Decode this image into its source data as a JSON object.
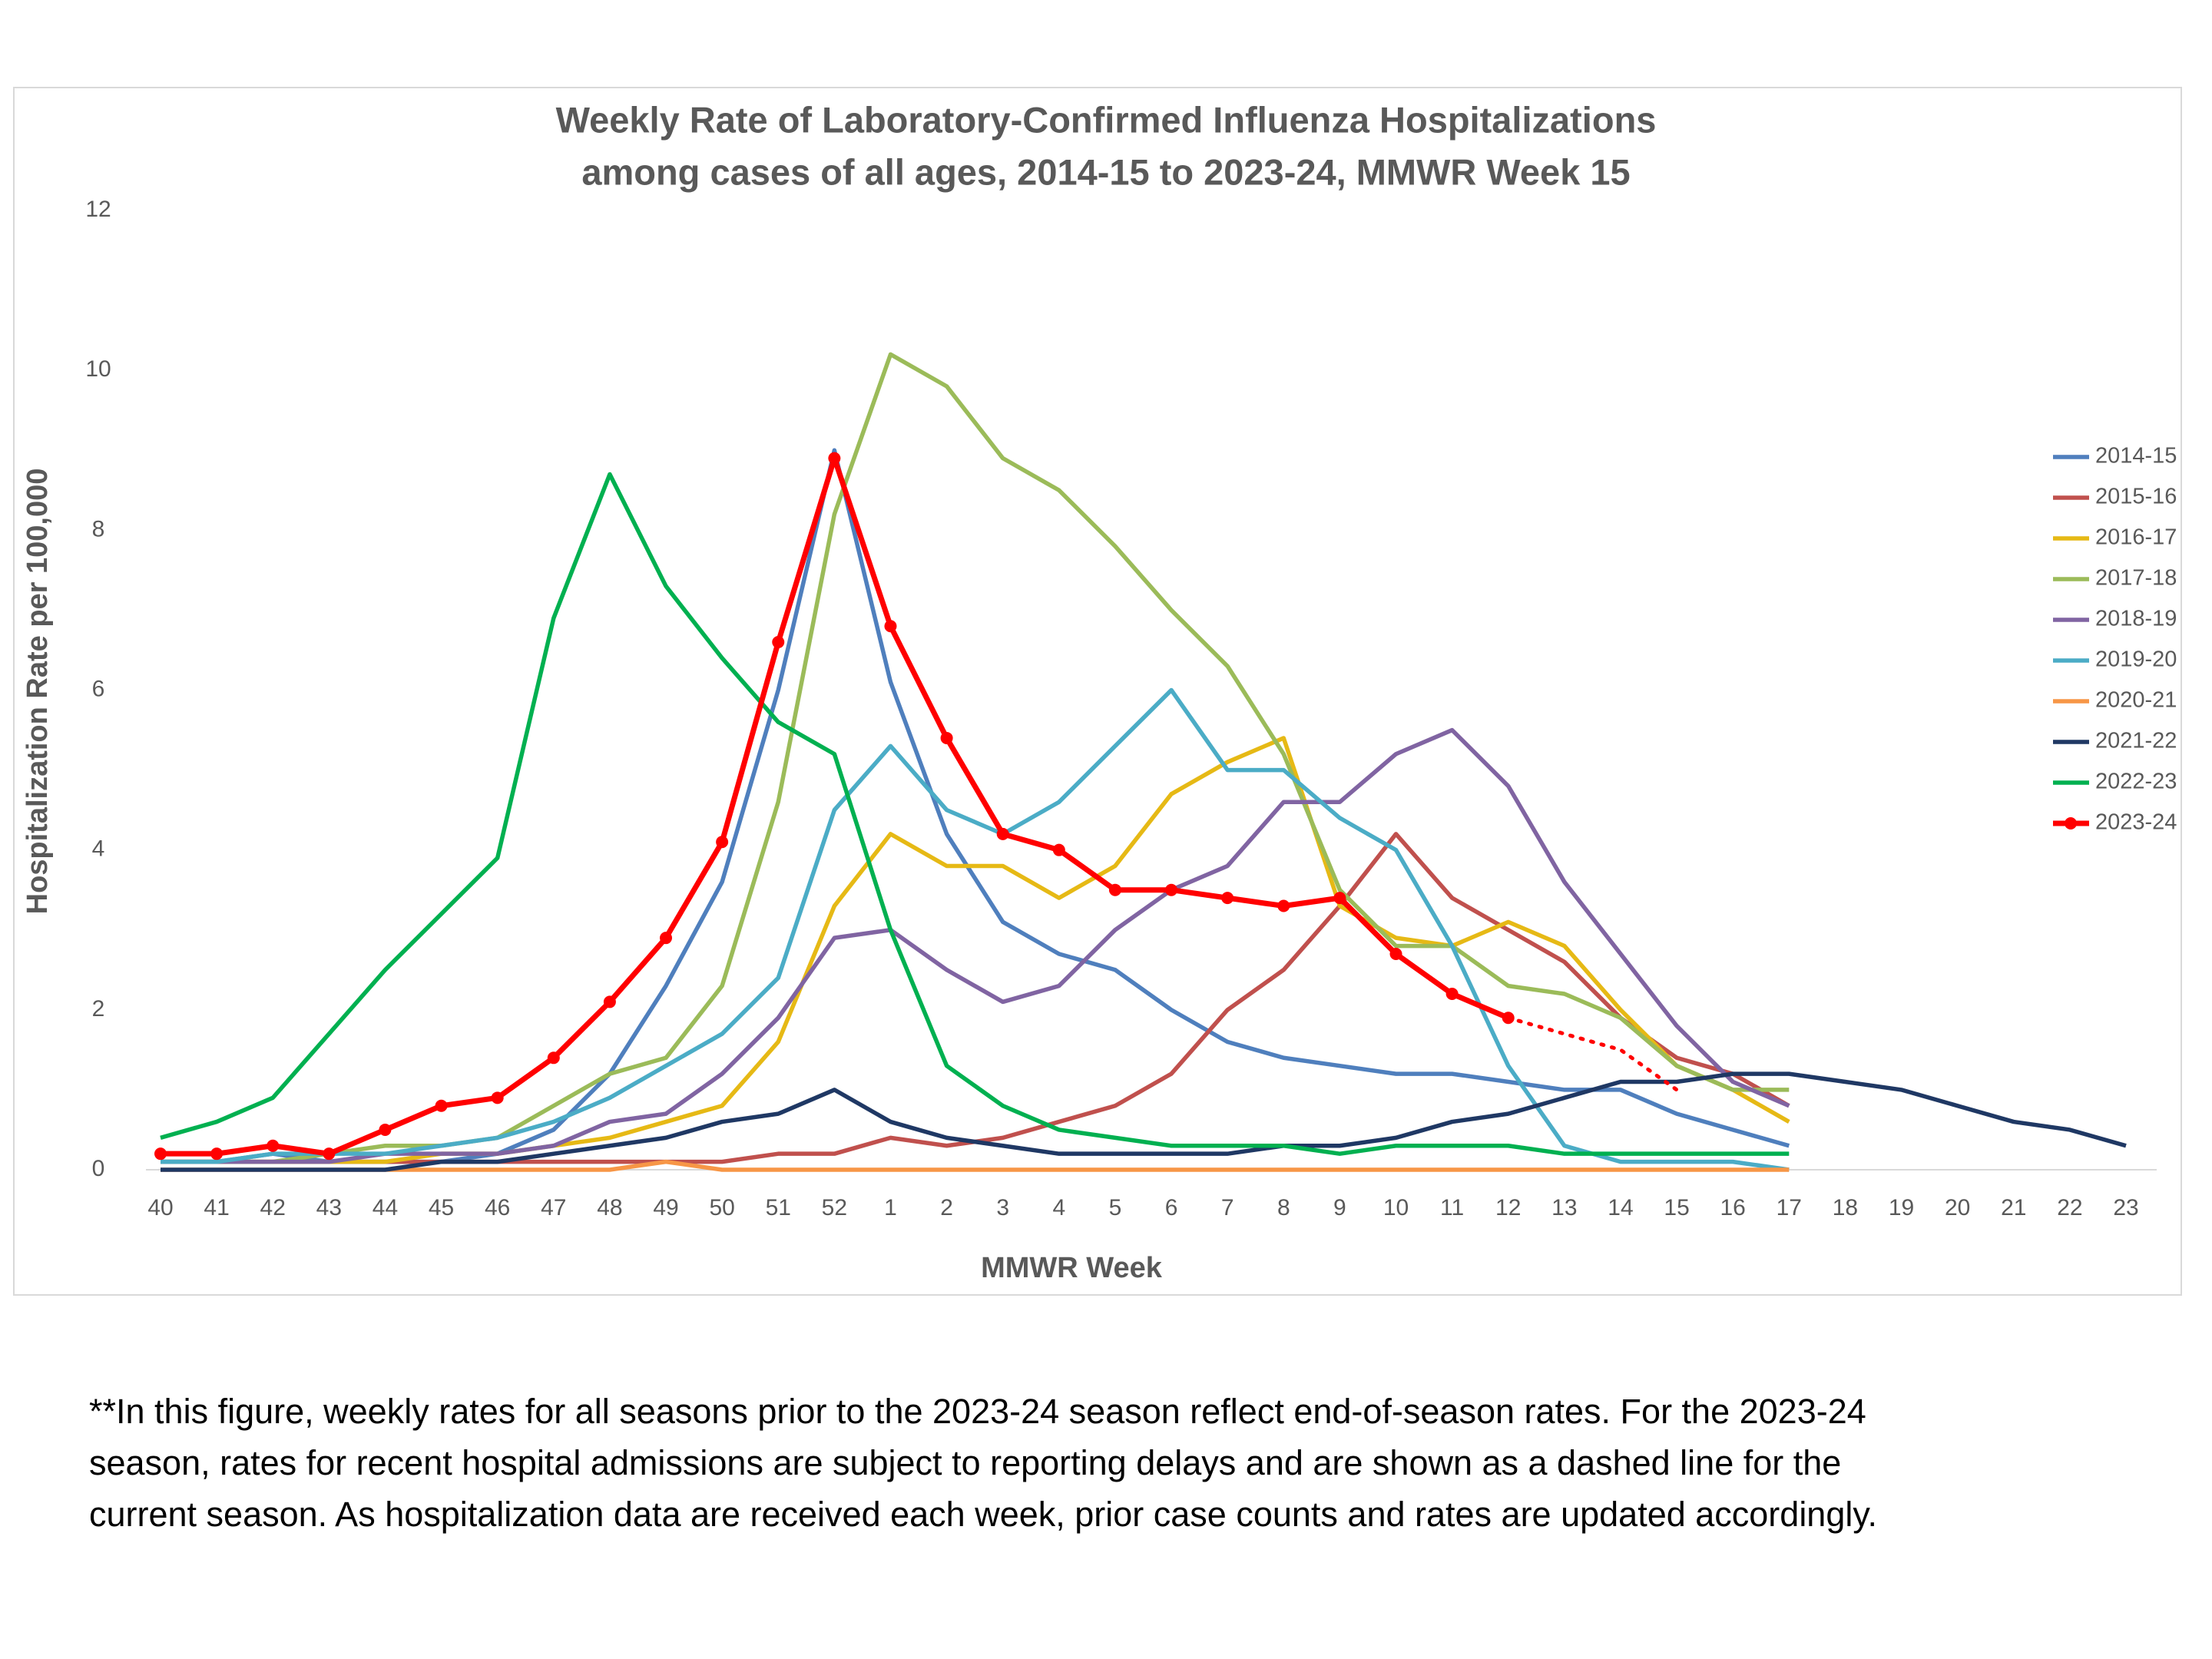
{
  "chart_data": {
    "type": "line",
    "title": [
      "Weekly Rate of Laboratory-Confirmed Influenza Hospitalizations",
      "among cases of all ages, 2014-15 to 2023-24, MMWR Week 15"
    ],
    "x_label": "MMWR Week",
    "y_label": "Hospitalization Rate per 100,000",
    "categories": [
      40,
      41,
      42,
      43,
      44,
      45,
      46,
      47,
      48,
      49,
      50,
      51,
      52,
      1,
      2,
      3,
      4,
      5,
      6,
      7,
      8,
      9,
      10,
      11,
      12,
      13,
      14,
      15,
      16,
      17,
      18,
      19,
      20,
      21,
      22,
      23
    ],
    "ylim": [
      0,
      12
    ],
    "yticks": [
      0,
      2,
      4,
      6,
      8,
      10,
      12
    ],
    "grid": false,
    "legend": "right",
    "series": [
      {
        "name": "2014-15",
        "color": "#4f7fbd",
        "values": [
          0.1,
          0.1,
          0.2,
          0.1,
          0.1,
          0.1,
          0.2,
          0.5,
          1.2,
          2.3,
          3.6,
          6.0,
          9.0,
          6.1,
          4.2,
          3.1,
          2.7,
          2.5,
          2.0,
          1.6,
          1.4,
          1.3,
          1.2,
          1.2,
          1.1,
          1.0,
          1.0,
          0.7,
          0.5,
          0.3,
          null,
          null,
          null,
          null,
          null,
          null
        ]
      },
      {
        "name": "2015-16",
        "color": "#c0504d",
        "values": [
          0.1,
          0.1,
          0.1,
          0.1,
          0.1,
          0.1,
          0.1,
          0.1,
          0.1,
          0.1,
          0.1,
          0.2,
          0.2,
          0.4,
          0.3,
          0.4,
          0.6,
          0.8,
          1.2,
          2.0,
          2.5,
          3.3,
          4.2,
          3.4,
          3.0,
          2.6,
          1.9,
          1.4,
          1.2,
          0.8,
          null,
          null,
          null,
          null,
          null,
          null
        ]
      },
      {
        "name": "2016-17",
        "color": "#e6b915",
        "values": [
          0.1,
          0.1,
          0.1,
          0.1,
          0.1,
          0.2,
          0.2,
          0.3,
          0.4,
          0.6,
          0.8,
          1.6,
          3.3,
          4.2,
          3.8,
          3.8,
          3.4,
          3.8,
          4.7,
          5.1,
          5.4,
          3.3,
          2.9,
          2.8,
          3.1,
          2.8,
          2.0,
          1.3,
          1.0,
          0.6,
          null,
          null,
          null,
          null,
          null,
          null
        ]
      },
      {
        "name": "2017-18",
        "color": "#9bbb59",
        "values": [
          0.1,
          0.1,
          0.1,
          0.2,
          0.3,
          0.3,
          0.4,
          0.8,
          1.2,
          1.4,
          2.3,
          4.6,
          8.2,
          10.2,
          9.8,
          8.9,
          8.5,
          7.8,
          7.0,
          6.3,
          5.2,
          3.5,
          2.8,
          2.8,
          2.3,
          2.2,
          1.9,
          1.3,
          1.0,
          1.0,
          null,
          null,
          null,
          null,
          null,
          null
        ]
      },
      {
        "name": "2018-19",
        "color": "#8064a2",
        "values": [
          0.1,
          0.1,
          0.1,
          0.1,
          0.2,
          0.2,
          0.2,
          0.3,
          0.6,
          0.7,
          1.2,
          1.9,
          2.9,
          3.0,
          2.5,
          2.1,
          2.3,
          3.0,
          3.5,
          3.8,
          4.6,
          4.6,
          5.2,
          5.5,
          4.8,
          3.6,
          2.7,
          1.8,
          1.1,
          0.8,
          null,
          null,
          null,
          null,
          null,
          null
        ]
      },
      {
        "name": "2019-20",
        "color": "#4bacc6",
        "values": [
          0.1,
          0.1,
          0.2,
          0.2,
          0.2,
          0.3,
          0.4,
          0.6,
          0.9,
          1.3,
          1.7,
          2.4,
          4.5,
          5.3,
          4.5,
          4.2,
          4.6,
          5.3,
          6.0,
          5.0,
          5.0,
          4.4,
          4.0,
          2.8,
          1.3,
          0.3,
          0.1,
          0.1,
          0.1,
          0.0,
          null,
          null,
          null,
          null,
          null,
          null
        ]
      },
      {
        "name": "2020-21",
        "color": "#f79646",
        "values": [
          0,
          0,
          0,
          0,
          0,
          0,
          0,
          0,
          0,
          0.1,
          0,
          0,
          0,
          0,
          0,
          0,
          0,
          0,
          0,
          0,
          0,
          0,
          0,
          0,
          0,
          0,
          0,
          0,
          0,
          0,
          null,
          null,
          null,
          null,
          null,
          null
        ]
      },
      {
        "name": "2021-22",
        "color": "#1f3864",
        "values": [
          0,
          0,
          0,
          0,
          0,
          0.1,
          0.1,
          0.2,
          0.3,
          0.4,
          0.6,
          0.7,
          1.0,
          0.6,
          0.4,
          0.3,
          0.2,
          0.2,
          0.2,
          0.2,
          0.3,
          0.3,
          0.4,
          0.6,
          0.7,
          0.9,
          1.1,
          1.1,
          1.2,
          1.2,
          1.1,
          1.0,
          0.8,
          0.6,
          0.5,
          0.3
        ]
      },
      {
        "name": "2022-23",
        "color": "#00b050",
        "values": [
          0.4,
          0.6,
          0.9,
          1.7,
          2.5,
          3.2,
          3.9,
          6.9,
          8.7,
          7.3,
          6.4,
          5.6,
          5.2,
          3.0,
          1.3,
          0.8,
          0.5,
          0.4,
          0.3,
          0.3,
          0.3,
          0.2,
          0.3,
          0.3,
          0.3,
          0.2,
          0.2,
          0.2,
          0.2,
          0.2,
          null,
          null,
          null,
          null,
          null,
          null
        ]
      },
      {
        "name": "2023-24",
        "color": "#ff0000",
        "markers": true,
        "values": [
          0.2,
          0.2,
          0.3,
          0.2,
          0.5,
          0.8,
          0.9,
          1.4,
          2.1,
          2.9,
          4.1,
          6.6,
          8.9,
          6.8,
          5.4,
          4.2,
          4.0,
          3.5,
          3.5,
          3.4,
          3.3,
          3.4,
          2.7,
          2.2,
          1.9,
          null,
          null,
          null,
          null,
          null,
          null,
          null,
          null,
          null,
          null,
          null
        ],
        "dashed_values": [
          null,
          null,
          null,
          null,
          null,
          null,
          null,
          null,
          null,
          null,
          null,
          null,
          null,
          null,
          null,
          null,
          null,
          null,
          null,
          null,
          null,
          null,
          null,
          null,
          null,
          1.7,
          1.5,
          1.0,
          null,
          null,
          null,
          null,
          null,
          null,
          null,
          null
        ]
      }
    ],
    "footnote": [
      "**In this figure, weekly rates for all seasons prior to the 2023-24 season reflect end-of-season rates. For the 2023-24",
      "season, rates for recent hospital admissions are subject to reporting delays and are shown as a dashed line for the",
      "current season. As hospitalization data are received each week, prior case counts and rates are updated accordingly."
    ]
  }
}
